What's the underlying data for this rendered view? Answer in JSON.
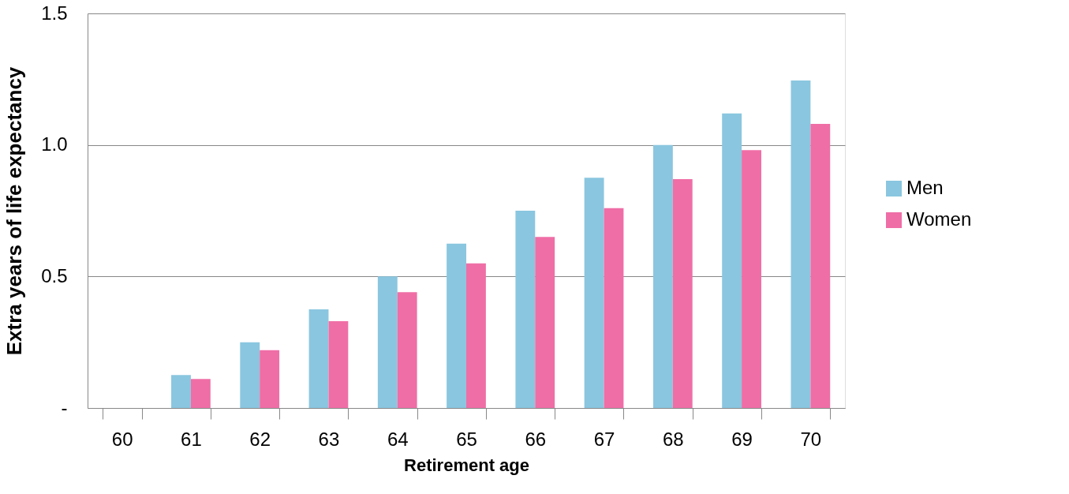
{
  "chart_data": {
    "type": "bar",
    "xlabel": "Retirement age",
    "ylabel": "Extra years of life expectancy",
    "categories": [
      "60",
      "61",
      "62",
      "63",
      "64",
      "65",
      "66",
      "67",
      "68",
      "69",
      "70"
    ],
    "series": [
      {
        "name": "Men",
        "color": "#8ac6df",
        "values": [
          0,
          0.125,
          0.25,
          0.375,
          0.5,
          0.625,
          0.75,
          0.875,
          1.0,
          1.12,
          1.245
        ]
      },
      {
        "name": "Women",
        "color": "#ef6ea6",
        "values": [
          0,
          0.11,
          0.22,
          0.33,
          0.44,
          0.55,
          0.65,
          0.76,
          0.87,
          0.98,
          1.08
        ]
      }
    ],
    "ylim": [
      0,
      1.5
    ],
    "yticks": [
      {
        "value": 0,
        "label": "-"
      },
      0.5,
      {
        "value": 1.0,
        "label": "1.0"
      },
      1.5
    ],
    "grid": "y",
    "legend": "right"
  }
}
